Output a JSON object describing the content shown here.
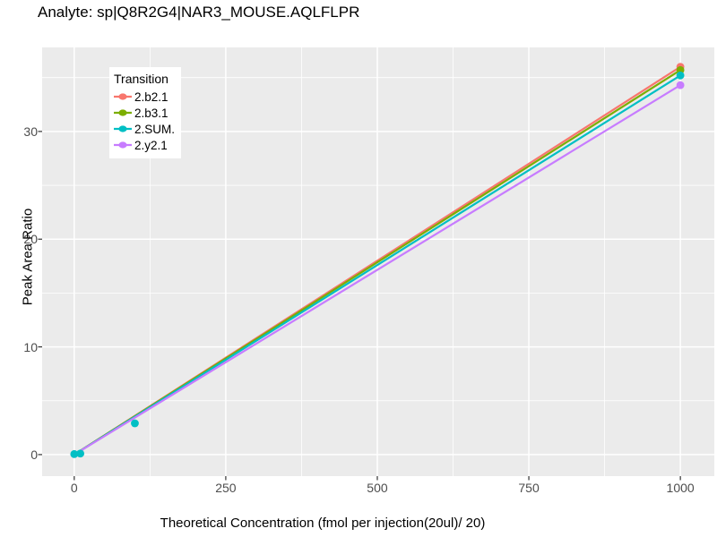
{
  "chart_data": {
    "type": "scatter",
    "title": "Analyte: sp|Q8R2G4|NAR3_MOUSE.AQLFLPR",
    "xlabel": "Theoretical Concentration (fmol per injection(20ul)/ 20)",
    "ylabel": "Peak Area Ratio",
    "legend_title": "Transition",
    "legend_position": "inside-top-left",
    "grid": true,
    "panel_bg": "#EBEBEB",
    "grid_color": "#FFFFFF",
    "tick_label_color": "#4D4D4D",
    "axis_tick_color": "#333333",
    "xlim": [
      -53,
      1056
    ],
    "ylim": [
      -2,
      37.8
    ],
    "x_ticks": [
      0,
      250,
      500,
      750,
      1000
    ],
    "x_minor_ticks": [
      125,
      375,
      625,
      875
    ],
    "y_ticks": [
      0,
      10,
      20,
      30
    ],
    "y_minor_ticks": [
      5,
      15,
      25,
      35
    ],
    "series": [
      {
        "name": "2.b2.1",
        "color": "#F8766D",
        "line": {
          "x": [
            0,
            1000
          ],
          "y": [
            0,
            36.0
          ]
        },
        "points": [
          [
            1000,
            36.0
          ]
        ]
      },
      {
        "name": "2.b3.1",
        "color": "#7CAE00",
        "line": {
          "x": [
            0,
            1000
          ],
          "y": [
            0,
            35.7
          ]
        },
        "points": [
          [
            1000,
            35.7
          ]
        ]
      },
      {
        "name": "2.SUM.",
        "color": "#00BFC4",
        "line": {
          "x": [
            0,
            1000
          ],
          "y": [
            0,
            35.2
          ]
        },
        "points": [
          [
            0,
            0.05
          ],
          [
            10,
            0.1
          ],
          [
            100,
            2.9
          ],
          [
            1000,
            35.2
          ]
        ]
      },
      {
        "name": "2.y2.1",
        "color": "#C77CFF",
        "line": {
          "x": [
            0,
            1000
          ],
          "y": [
            0,
            34.3
          ]
        },
        "points": [
          [
            1000,
            34.3
          ]
        ]
      }
    ]
  }
}
